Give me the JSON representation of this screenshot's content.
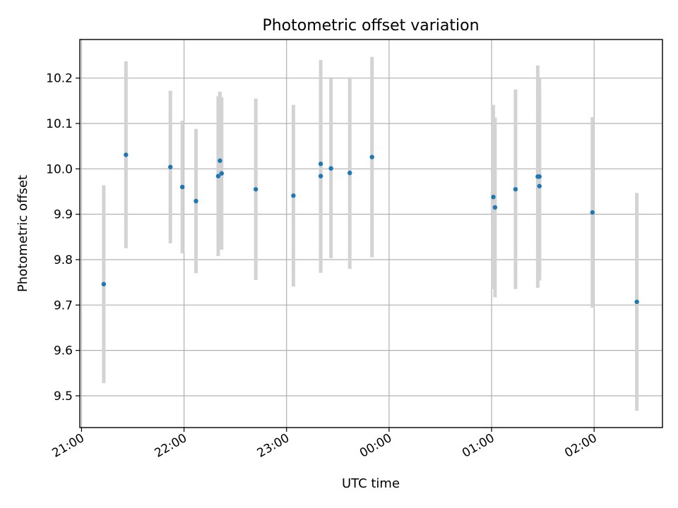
{
  "chart_data": {
    "type": "scatter",
    "title": "Photometric offset variation",
    "xlabel": "UTC time",
    "ylabel": "Photometric offset",
    "x_axis": "time",
    "xlim": [
      "20:59",
      "02:40"
    ],
    "ylim": [
      9.43,
      10.285
    ],
    "x_ticks": [
      "21:00",
      "22:00",
      "23:00",
      "00:00",
      "01:00",
      "02:00"
    ],
    "y_ticks": [
      9.5,
      9.6,
      9.7,
      9.8,
      9.9,
      10.0,
      10.1,
      10.2
    ],
    "grid": true,
    "marker_color": "#1f77b4",
    "errorbar_color": "#d3d3d3",
    "points": [
      {
        "time": "21:13",
        "y": 9.746,
        "err": 0.218
      },
      {
        "time": "21:26",
        "y": 10.031,
        "err": 0.206
      },
      {
        "time": "21:52",
        "y": 10.004,
        "err": 0.168
      },
      {
        "time": "21:59",
        "y": 9.96,
        "err": 0.146
      },
      {
        "time": "22:07",
        "y": 9.929,
        "err": 0.159
      },
      {
        "time": "22:20",
        "y": 9.984,
        "err": 0.176
      },
      {
        "time": "22:21",
        "y": 10.018,
        "err": 0.152
      },
      {
        "time": "22:22",
        "y": 9.99,
        "err": 0.168
      },
      {
        "time": "22:42",
        "y": 9.955,
        "err": 0.2
      },
      {
        "time": "23:04",
        "y": 9.941,
        "err": 0.2
      },
      {
        "time": "23:20",
        "y": 9.984,
        "err": 0.213
      },
      {
        "time": "23:20",
        "y": 10.011,
        "err": 0.229
      },
      {
        "time": "23:26",
        "y": 10.001,
        "err": 0.198
      },
      {
        "time": "23:37",
        "y": 9.991,
        "err": 0.211
      },
      {
        "time": "23:50",
        "y": 10.026,
        "err": 0.221
      },
      {
        "time": "01:01",
        "y": 9.938,
        "err": 0.203
      },
      {
        "time": "01:02",
        "y": 9.915,
        "err": 0.198
      },
      {
        "time": "01:14",
        "y": 9.955,
        "err": 0.22
      },
      {
        "time": "01:27",
        "y": 9.983,
        "err": 0.245
      },
      {
        "time": "01:28",
        "y": 9.962,
        "err": 0.208
      },
      {
        "time": "01:28",
        "y": 9.983,
        "err": 0.217
      },
      {
        "time": "01:59",
        "y": 9.904,
        "err": 0.21
      },
      {
        "time": "02:25",
        "y": 9.707,
        "err": 0.24
      }
    ]
  }
}
